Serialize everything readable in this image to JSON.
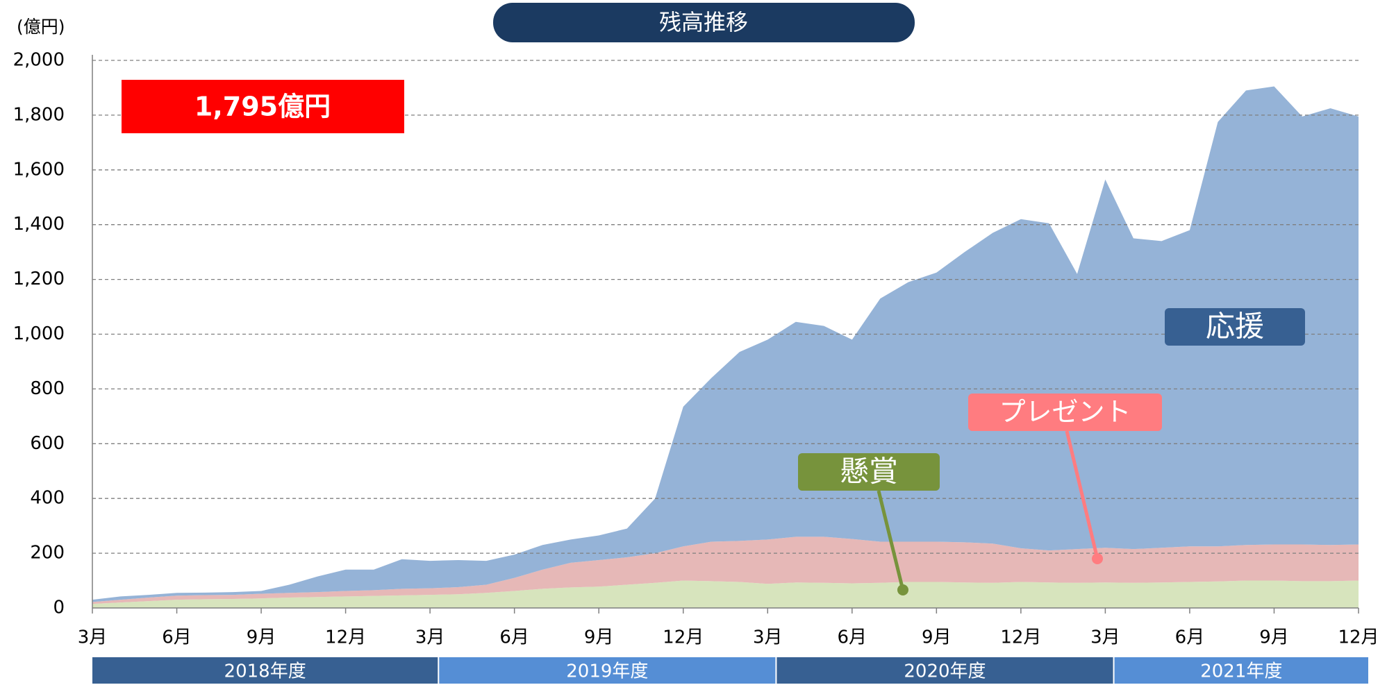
{
  "chart_data": {
    "type": "stacked_area",
    "title": "残高推移",
    "y_unit_label": "(億円)",
    "annotation": "1,795億円",
    "categories": [
      "3月",
      null,
      null,
      "6月",
      null,
      null,
      "9月",
      null,
      null,
      "12月",
      null,
      null,
      "3月",
      null,
      null,
      "6月",
      null,
      null,
      "9月",
      null,
      null,
      "12月",
      null,
      null,
      "3月",
      null,
      null,
      "6月",
      null,
      null,
      "9月",
      null,
      null,
      "12月",
      null,
      null,
      "3月",
      null,
      null,
      "6月",
      null,
      null,
      "9月",
      null,
      null,
      "12月"
    ],
    "fiscal_years": [
      "2018年度",
      "2019年度",
      "2020年度",
      "2021年度"
    ],
    "series": [
      {
        "name": "懸賞",
        "color": "#d7e4bd",
        "label_color": "#77933c",
        "values": [
          15,
          20,
          25,
          30,
          32,
          33,
          35,
          38,
          40,
          42,
          44,
          46,
          48,
          50,
          55,
          62,
          70,
          75,
          78,
          85,
          92,
          100,
          98,
          95,
          88,
          93,
          92,
          90,
          92,
          95,
          95,
          93,
          92,
          95,
          93,
          92,
          93,
          92,
          93,
          95,
          97,
          100,
          100,
          98,
          98,
          100
        ]
      },
      {
        "name": "プレゼント",
        "color": "#e6b8b7",
        "label_color": "#ff7c80",
        "values": [
          7,
          10,
          13,
          15,
          15,
          15,
          17,
          17,
          18,
          20,
          21,
          24,
          24,
          26,
          30,
          48,
          70,
          90,
          97,
          100,
          108,
          125,
          144,
          150,
          162,
          167,
          168,
          162,
          150,
          147,
          147,
          147,
          143,
          123,
          117,
          123,
          127,
          123,
          127,
          130,
          128,
          130,
          132,
          134,
          132,
          132
        ]
      },
      {
        "name": "応援",
        "color": "#95b3d7",
        "label_color": "#376092",
        "values": [
          8,
          12,
          10,
          10,
          9,
          10,
          10,
          30,
          57,
          78,
          75,
          108,
          100,
          99,
          87,
          85,
          90,
          85,
          90,
          105,
          200,
          510,
          598,
          690,
          730,
          785,
          770,
          728,
          888,
          948,
          983,
          1060,
          1135,
          1202,
          1195,
          1005,
          1345,
          1135,
          1120,
          1155,
          1550,
          1660,
          1673,
          1563,
          1595,
          1563
        ]
      }
    ],
    "ylim": [
      0,
      2000
    ],
    "yticks": [
      0,
      {
        "value": 200,
        "label": "200"
      },
      400,
      600,
      800,
      {
        "value": 1000,
        "label": "1,000"
      },
      {
        "value": 1200,
        "label": "1,200"
      },
      {
        "value": 1400,
        "label": "1,400"
      },
      {
        "value": 1600,
        "label": "1,600"
      },
      {
        "value": 1800,
        "label": "1,800"
      },
      {
        "value": 2000,
        "label": "2,000"
      }
    ],
    "grid": true
  }
}
